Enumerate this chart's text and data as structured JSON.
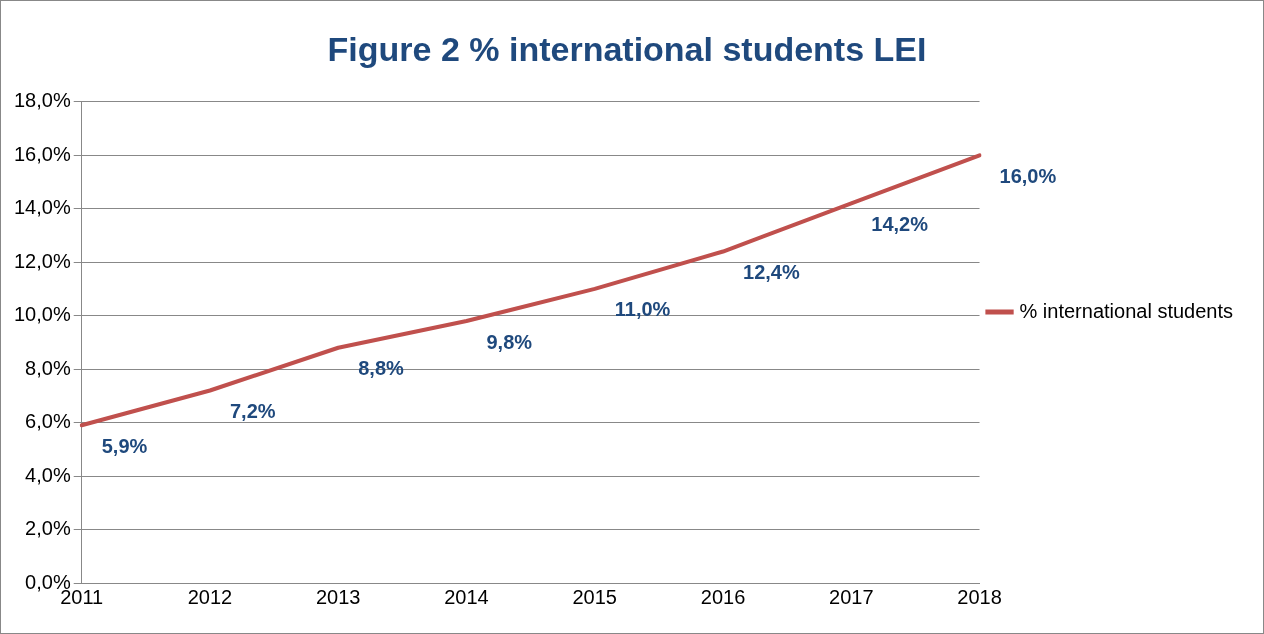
{
  "chart_data": {
    "type": "line",
    "title": "Figure 2 % international students LEI",
    "categories": [
      "2011",
      "2012",
      "2013",
      "2014",
      "2015",
      "2016",
      "2017",
      "2018"
    ],
    "series": [
      {
        "name": "% international students",
        "color": "#c0504d",
        "values": [
          5.9,
          7.2,
          8.8,
          9.8,
          11.0,
          12.4,
          14.2,
          16.0
        ],
        "value_labels": [
          "5,9%",
          "7,2%",
          "8,8%",
          "9,8%",
          "11,0%",
          "12,4%",
          "14,2%",
          "16,0%"
        ]
      }
    ],
    "ylim": [
      0,
      18
    ],
    "yticks": [
      {
        "value": 0,
        "label": "0,0%"
      },
      {
        "value": 2,
        "label": "2,0%"
      },
      {
        "value": 4,
        "label": "4,0%"
      },
      {
        "value": 6,
        "label": "6,0%"
      },
      {
        "value": 8,
        "label": "8,0%"
      },
      {
        "value": 10,
        "label": "10,0%"
      },
      {
        "value": 12,
        "label": "12,0%"
      },
      {
        "value": 14,
        "label": "14,0%"
      },
      {
        "value": 16,
        "label": "16,0%"
      },
      {
        "value": 18,
        "label": "18,0%"
      }
    ],
    "grid": "y",
    "legend": "right",
    "marker": "none",
    "line_style": "solid"
  }
}
